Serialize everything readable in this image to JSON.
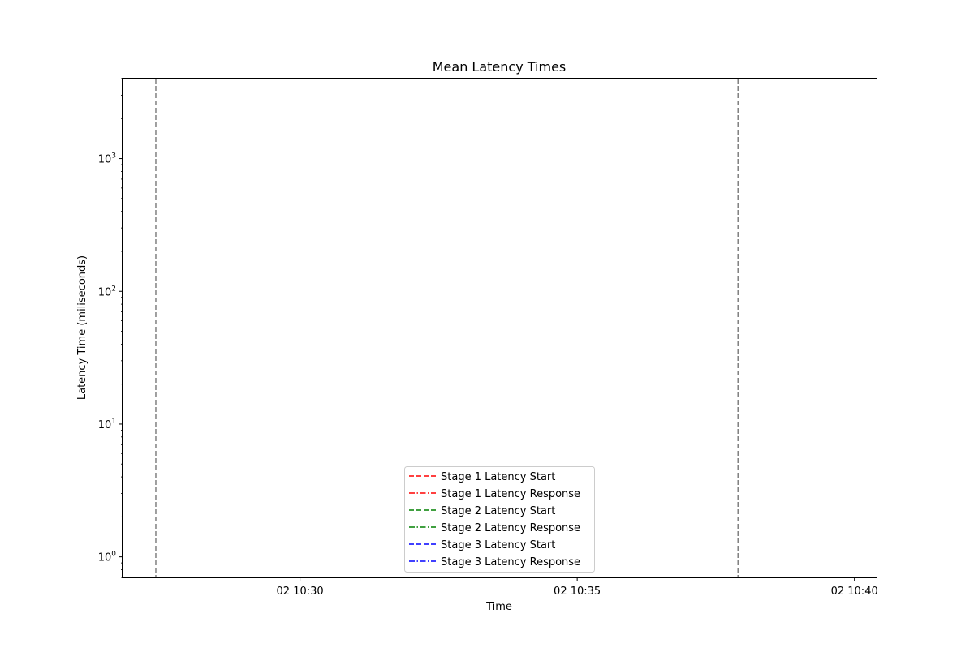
{
  "chart_data": {
    "type": "line",
    "title": "Mean Latency Times",
    "xlabel": "Time",
    "ylabel": "Latency Time (miliseconds)",
    "x_axis": {
      "type": "time",
      "range": [
        "10:26:48",
        "10:40:24"
      ],
      "ticks": [
        {
          "value": "10:30:00",
          "label": "02 10:30"
        },
        {
          "value": "10:35:00",
          "label": "02 10:35"
        },
        {
          "value": "10:40:00",
          "label": "02 10:40"
        }
      ]
    },
    "y_axis": {
      "scale": "log",
      "range": [
        0.7,
        4000
      ],
      "ticks": [
        {
          "value": 1,
          "base": "10",
          "exp": "0"
        },
        {
          "value": 10,
          "base": "10",
          "exp": "1"
        },
        {
          "value": 100,
          "base": "10",
          "exp": "2"
        },
        {
          "value": 1000,
          "base": "10",
          "exp": "3"
        }
      ]
    },
    "grid": false,
    "vertical_lines": [
      {
        "x": "10:27:24",
        "color": "#808080",
        "style": "dashed"
      },
      {
        "x": "10:37:54",
        "color": "#808080",
        "style": "dashed"
      }
    ],
    "series": [
      {
        "name": "Stage 1 Latency Start",
        "color": "#ff0000",
        "style": "dashed",
        "values": []
      },
      {
        "name": "Stage 1 Latency Response",
        "color": "#ff0000",
        "style": "dashdot",
        "values": []
      },
      {
        "name": "Stage 2 Latency Start",
        "color": "#008000",
        "style": "dashed",
        "values": []
      },
      {
        "name": "Stage 2 Latency Response",
        "color": "#008000",
        "style": "dashdot",
        "values": []
      },
      {
        "name": "Stage 3 Latency Start",
        "color": "#0000ff",
        "style": "dashed",
        "values": []
      },
      {
        "name": "Stage 3 Latency Response",
        "color": "#0000ff",
        "style": "dashdot",
        "values": []
      }
    ],
    "legend": {
      "position": "lower-center"
    }
  }
}
